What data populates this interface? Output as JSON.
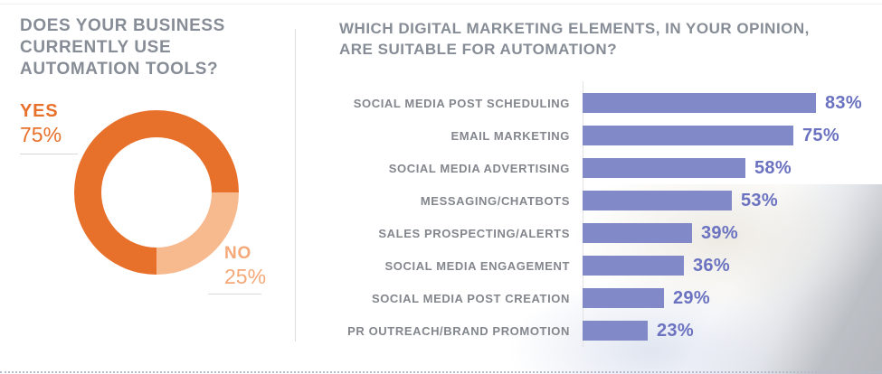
{
  "left_section": {
    "title_lines": [
      "DOES YOUR BUSINESS",
      "CURRENTLY USE",
      "AUTOMATION TOOLS?"
    ],
    "yes": {
      "label": "YES",
      "value": "75%"
    },
    "no": {
      "label": "NO",
      "value": "25%"
    }
  },
  "right_section": {
    "title_lines": [
      "WHICH DIGITAL MARKETING ELEMENTS, IN YOUR OPINION,",
      "ARE SUITABLE FOR AUTOMATION?"
    ]
  },
  "colors": {
    "heading_gray": "#878d96",
    "label_gray": "#83868d",
    "yes_orange": "#e7702a",
    "no_orange_slice": "#f7ba8e",
    "no_orange_text": "#f5a878",
    "bar_purple": "#8289c9",
    "value_purple": "#6b73c1",
    "divider_gray": "#dddddd",
    "dotted_line": "#b6bccf"
  },
  "chart_data": [
    {
      "type": "pie",
      "donut": true,
      "title": "DOES YOUR BUSINESS CURRENTLY USE AUTOMATION TOOLS?",
      "categories": [
        "YES",
        "NO"
      ],
      "values": [
        75,
        25
      ],
      "colors": [
        "#e7702a",
        "#f7ba8e"
      ],
      "layout": "NO slice spans from 3 o'clock to 6 o'clock (clockwise); YES fills the rest; YES label top-left, NO label bottom-right"
    },
    {
      "type": "bar",
      "orientation": "horizontal",
      "title": "WHICH DIGITAL MARKETING ELEMENTS, IN YOUR OPINION, ARE SUITABLE FOR AUTOMATION?",
      "categories": [
        "SOCIAL MEDIA POST SCHEDULING",
        "EMAIL MARKETING",
        "SOCIAL MEDIA ADVERTISING",
        "MESSAGING/CHATBOTS",
        "SALES PROSPECTING/ALERTS",
        "SOCIAL MEDIA ENGAGEMENT",
        "SOCIAL MEDIA POST CREATION",
        "PR OUTREACH/BRAND PROMOTION"
      ],
      "values": [
        83,
        75,
        58,
        53,
        39,
        36,
        29,
        23
      ],
      "value_suffix": "%",
      "xlim": [
        0,
        100
      ],
      "bar_color": "#8289c9",
      "value_color": "#6b73c1",
      "grid": false,
      "legend": false
    }
  ]
}
